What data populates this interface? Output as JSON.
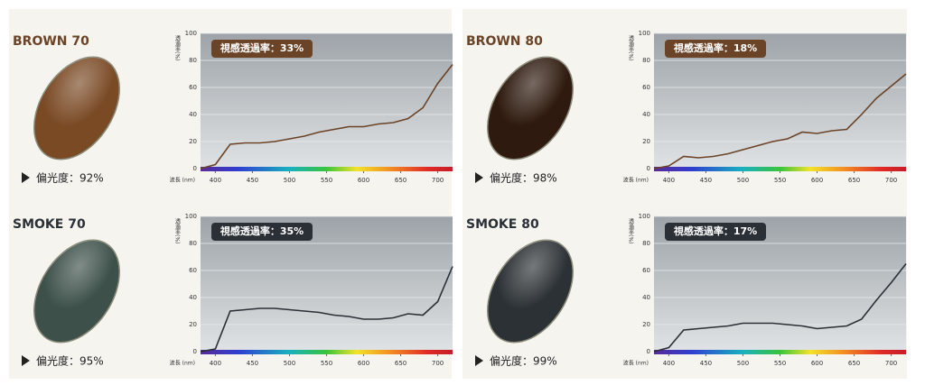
{
  "chart_data": [
    {
      "type": "line",
      "title": "BROWN 70",
      "annotation": "視感透過率：33%",
      "polarization": "偏光度：92%",
      "color": "#6b4428",
      "lens_color": "#7a4a25",
      "x_label": "波長 (nm)",
      "y_label": "透過率(%)",
      "x": [
        380,
        400,
        420,
        440,
        460,
        480,
        500,
        520,
        540,
        560,
        580,
        600,
        620,
        640,
        660,
        680,
        700,
        720
      ],
      "values": [
        0,
        3,
        18,
        19,
        19,
        20,
        22,
        24,
        27,
        29,
        31,
        31,
        33,
        34,
        37,
        45,
        63,
        77
      ],
      "xlim": [
        380,
        720
      ],
      "ylim": [
        0,
        100
      ],
      "xticks": [
        400,
        450,
        500,
        550,
        600,
        650,
        700
      ],
      "yticks": [
        0,
        20,
        40,
        60,
        80,
        100
      ],
      "grid": true
    },
    {
      "type": "line",
      "title": "BROWN 80",
      "annotation": "視感透過率：18%",
      "polarization": "偏光度：98%",
      "color": "#6b4428",
      "lens_color": "#2e1a0e",
      "x_label": "波長 (nm)",
      "y_label": "透過率(%)",
      "x": [
        380,
        400,
        420,
        440,
        460,
        480,
        500,
        520,
        540,
        560,
        580,
        600,
        620,
        640,
        660,
        680,
        700,
        720
      ],
      "values": [
        0,
        2,
        9,
        8,
        9,
        11,
        14,
        17,
        20,
        22,
        27,
        26,
        28,
        29,
        40,
        52,
        61,
        70
      ],
      "xlim": [
        380,
        720
      ],
      "ylim": [
        0,
        100
      ],
      "xticks": [
        400,
        450,
        500,
        550,
        600,
        650,
        700
      ],
      "yticks": [
        0,
        20,
        40,
        60,
        80,
        100
      ],
      "grid": true
    },
    {
      "type": "line",
      "title": "SMOKE 70",
      "annotation": "視感透過率：35%",
      "polarization": "偏光度：95%",
      "color": "#2b3036",
      "lens_color": "#3d504a",
      "x_label": "波長 (nm)",
      "y_label": "透過率(%)",
      "x": [
        380,
        400,
        420,
        440,
        460,
        480,
        500,
        520,
        540,
        560,
        580,
        600,
        620,
        640,
        660,
        680,
        700,
        720
      ],
      "values": [
        0,
        2,
        30,
        31,
        32,
        32,
        31,
        30,
        29,
        27,
        26,
        24,
        24,
        25,
        28,
        27,
        37,
        63
      ],
      "xlim": [
        380,
        720
      ],
      "ylim": [
        0,
        100
      ],
      "xticks": [
        400,
        450,
        500,
        550,
        600,
        650,
        700
      ],
      "yticks": [
        0,
        20,
        40,
        60,
        80,
        100
      ],
      "grid": true
    },
    {
      "type": "line",
      "title": "SMOKE 80",
      "annotation": "視感透過率：17%",
      "polarization": "偏光度：99%",
      "color": "#2b3036",
      "lens_color": "#2c3135",
      "x_label": "波長 (nm)",
      "y_label": "透過率(%)",
      "x": [
        380,
        400,
        420,
        440,
        460,
        480,
        500,
        520,
        540,
        560,
        580,
        600,
        620,
        640,
        660,
        680,
        700,
        720
      ],
      "values": [
        0,
        3,
        16,
        17,
        18,
        19,
        21,
        21,
        21,
        20,
        19,
        17,
        18,
        19,
        24,
        38,
        51,
        65
      ],
      "xlim": [
        380,
        720
      ],
      "ylim": [
        0,
        100
      ],
      "xticks": [
        400,
        450,
        500,
        550,
        600,
        650,
        700
      ],
      "yticks": [
        0,
        20,
        40,
        60,
        80,
        100
      ],
      "grid": true
    }
  ]
}
